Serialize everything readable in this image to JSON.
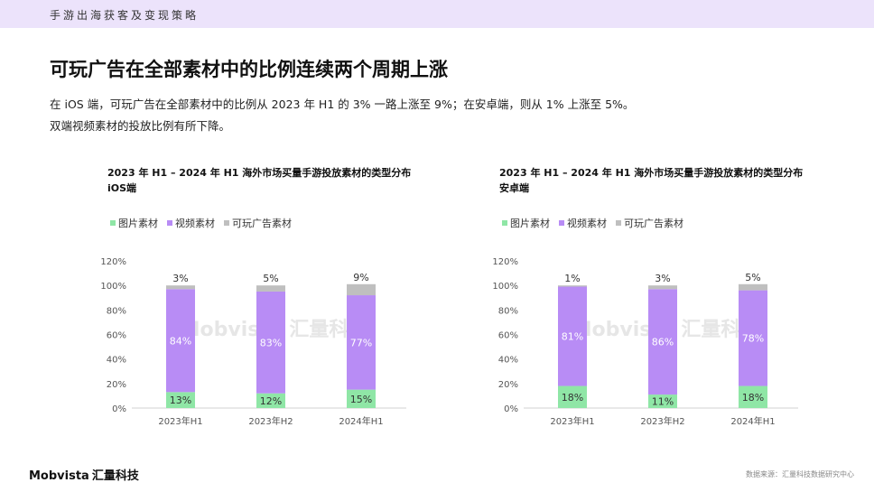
{
  "header": {
    "section": "手游出海获客及变现策略"
  },
  "title": "可玩广告在全部素材中的比例连续两个周期上涨",
  "subtitle_lines": [
    "在 iOS 端，可玩广告在全部素材中的比例从 2023 年 H1 的 3% 一路上涨至 9%；在安卓端，则从 1% 上涨至 5%。",
    "双端视频素材的投放比例有所下降。"
  ],
  "colors": {
    "image": "#8fe6a6",
    "video": "#b88cf5",
    "playable": "#bfbfbf"
  },
  "chart_data": [
    {
      "type": "bar",
      "stacked": true,
      "title": "2023 年 H1 – 2024 年 H1 海外市场买量手游投放素材的类型分布",
      "subtitle": "iOS端",
      "categories": [
        "2023年H1",
        "2023年H2",
        "2024年H1"
      ],
      "series": [
        {
          "name": "图片素材",
          "values": [
            13,
            12,
            15
          ],
          "labels": [
            "13%",
            "12%",
            "15%"
          ]
        },
        {
          "name": "视频素材",
          "values": [
            84,
            83,
            77
          ],
          "labels": [
            "84%",
            "83%",
            "77%"
          ]
        },
        {
          "name": "可玩广告素材",
          "values": [
            3,
            5,
            9
          ],
          "labels": [
            "3%",
            "5%",
            "9%"
          ]
        }
      ],
      "yticks": [
        "0%",
        "20%",
        "40%",
        "60%",
        "80%",
        "100%",
        "120%"
      ],
      "ylim": [
        0,
        120
      ],
      "legend_position": "top-left",
      "watermark": "Mobvista 汇量科技"
    },
    {
      "type": "bar",
      "stacked": true,
      "title": "2023 年 H1 – 2024 年 H1 海外市场买量手游投放素材的类型分布",
      "subtitle": "安卓端",
      "categories": [
        "2023年H1",
        "2023年H2",
        "2024年H1"
      ],
      "series": [
        {
          "name": "图片素材",
          "values": [
            18,
            11,
            18
          ],
          "labels": [
            "18%",
            "11%",
            "18%"
          ]
        },
        {
          "name": "视频素材",
          "values": [
            81,
            86,
            78
          ],
          "labels": [
            "81%",
            "86%",
            "78%"
          ]
        },
        {
          "name": "可玩广告素材",
          "values": [
            1,
            3,
            5
          ],
          "labels": [
            "1%",
            "3%",
            "5%"
          ]
        }
      ],
      "yticks": [
        "0%",
        "20%",
        "40%",
        "60%",
        "80%",
        "100%",
        "120%"
      ],
      "ylim": [
        0,
        120
      ],
      "legend_position": "top-left",
      "watermark": "Mobvista 汇量科技"
    }
  ],
  "footer": {
    "logo_en": "Mobvista",
    "logo_cn": "汇量科技",
    "source": "数据来源：汇量科技数据研究中心"
  }
}
